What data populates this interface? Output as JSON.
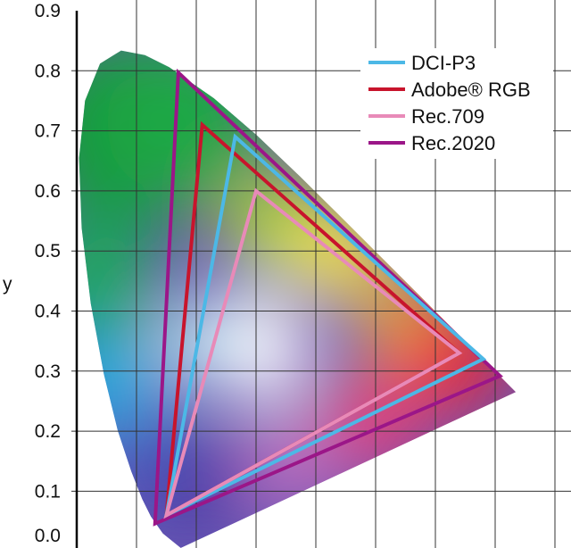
{
  "chart_data": {
    "type": "scatter",
    "title": "",
    "xlabel": "",
    "ylabel": "y",
    "xlim": [
      0,
      0.82
    ],
    "ylim": [
      0,
      0.9
    ],
    "grid": true,
    "y_ticks": [
      "0.9",
      "0.8",
      "0.7",
      "0.6",
      "0.5",
      "0.4",
      "0.3",
      "0.2",
      "0.1",
      "0.0"
    ],
    "legend_placement": "top-right",
    "spectral_locus": [
      [
        0.1741,
        0.005
      ],
      [
        0.144,
        0.0297
      ],
      [
        0.1241,
        0.0578
      ],
      [
        0.1096,
        0.0868
      ],
      [
        0.0913,
        0.1327
      ],
      [
        0.0687,
        0.2007
      ],
      [
        0.0454,
        0.295
      ],
      [
        0.0235,
        0.4127
      ],
      [
        0.0082,
        0.5384
      ],
      [
        0.0039,
        0.6548
      ],
      [
        0.0139,
        0.7502
      ],
      [
        0.0389,
        0.812
      ],
      [
        0.0743,
        0.8338
      ],
      [
        0.1142,
        0.8262
      ],
      [
        0.1547,
        0.8059
      ],
      [
        0.2296,
        0.7543
      ],
      [
        0.3016,
        0.6923
      ],
      [
        0.3731,
        0.6245
      ],
      [
        0.4441,
        0.5547
      ],
      [
        0.5125,
        0.4866
      ],
      [
        0.5752,
        0.4242
      ],
      [
        0.627,
        0.3725
      ],
      [
        0.6915,
        0.3083
      ],
      [
        0.7347,
        0.2653
      ]
    ],
    "series": [
      {
        "name": "DCI-P3",
        "color": "#4cb8e6",
        "points": [
          [
            0.68,
            0.32
          ],
          [
            0.265,
            0.69
          ],
          [
            0.15,
            0.06
          ]
        ]
      },
      {
        "name": "Adobe® RGB",
        "color": "#c8142c",
        "points": [
          [
            0.64,
            0.33
          ],
          [
            0.21,
            0.71
          ],
          [
            0.15,
            0.06
          ]
        ]
      },
      {
        "name": "Rec.709",
        "color": "#e88ab8",
        "points": [
          [
            0.64,
            0.33
          ],
          [
            0.3,
            0.6
          ],
          [
            0.15,
            0.06
          ]
        ]
      },
      {
        "name": "Rec.2020",
        "color": "#9b1688",
        "points": [
          [
            0.708,
            0.292
          ],
          [
            0.17,
            0.797
          ],
          [
            0.131,
            0.046
          ]
        ]
      }
    ]
  }
}
